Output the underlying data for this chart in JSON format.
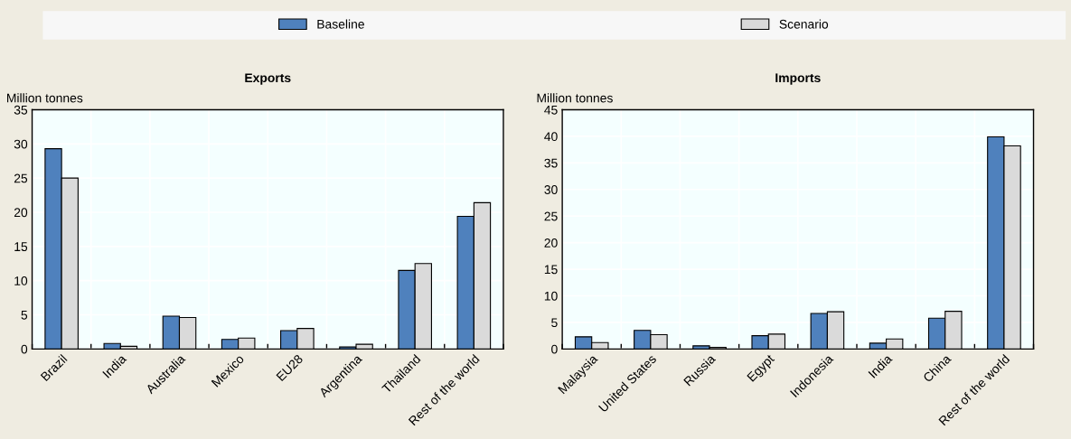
{
  "chart_data": [
    {
      "type": "bar",
      "title": "Exports",
      "ylabel": "Million tonnes",
      "legend": "top",
      "grid": true,
      "categories": [
        "Brazil",
        "India",
        "Australia",
        "Mexico",
        "EU28",
        "Argentina",
        "Thailand",
        "Rest of the world"
      ],
      "series": [
        {
          "name": "Baseline",
          "color": "#4f81bd",
          "values": [
            29.3,
            0.8,
            4.8,
            1.4,
            2.7,
            0.3,
            11.5,
            19.4
          ]
        },
        {
          "name": "Scenario",
          "color": "#dadada",
          "values": [
            25.0,
            0.4,
            4.6,
            1.6,
            3.0,
            0.7,
            12.5,
            21.4
          ]
        }
      ],
      "ylim": [
        0,
        35
      ],
      "yticks": [
        0,
        5,
        10,
        15,
        20,
        25,
        30,
        35
      ]
    },
    {
      "type": "bar",
      "title": "Imports",
      "ylabel": "Million tonnes",
      "grid": true,
      "categories": [
        "Malaysia",
        "United States",
        "Russia",
        "Egypt",
        "Indonesia",
        "India",
        "China",
        "Rest of the world"
      ],
      "series": [
        {
          "color": "#4f81bd",
          "values": [
            2.3,
            3.5,
            0.6,
            2.5,
            6.7,
            1.1,
            5.8,
            39.9
          ]
        },
        {
          "color": "#dadada",
          "values": [
            1.2,
            2.7,
            0.3,
            2.8,
            7.0,
            1.9,
            7.1,
            38.2
          ]
        }
      ],
      "ylim": [
        0,
        45
      ],
      "yticks": [
        0,
        5,
        10,
        15,
        20,
        25,
        30,
        35,
        40,
        45
      ]
    }
  ]
}
